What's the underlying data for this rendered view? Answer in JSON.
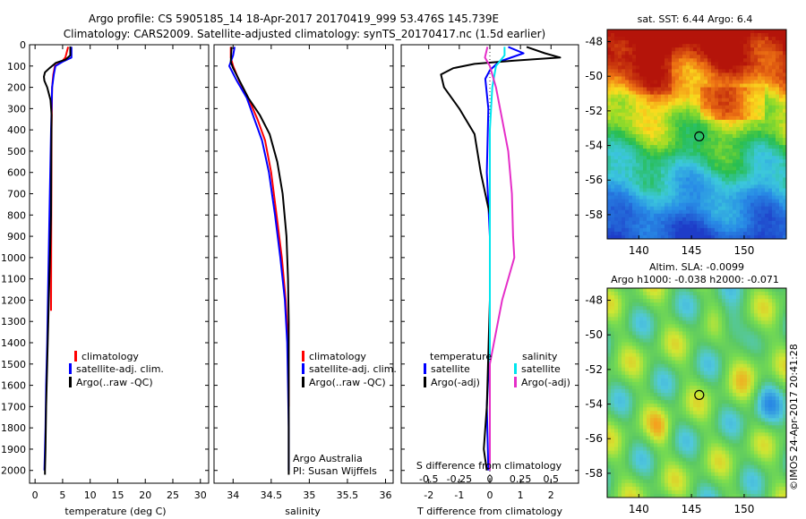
{
  "header": {
    "line1": "Argo profile: CS 5905185_14 18-Apr-2017 20170419_999 53.476S 145.739E",
    "line2": "Climatology: CARS2009. Satellite-adjusted climatology: synTS_20170417.nc (1.5d earlier)"
  },
  "colors": {
    "climatology": "#ff0000",
    "satellite": "#0000ff",
    "argo": "#000000",
    "satellite_salinity": "#00e5ee",
    "argo_salinity": "#e52ec8"
  },
  "depth_axis": {
    "ticks": [
      "0",
      "100",
      "200",
      "300",
      "400",
      "500",
      "600",
      "700",
      "800",
      "900",
      "1000",
      "1100",
      "1200",
      "1300",
      "1400",
      "1500",
      "1600",
      "1700",
      "1800",
      "1900",
      "2000"
    ],
    "range": [
      0,
      2060
    ]
  },
  "chart_data": [
    {
      "id": "temperature",
      "type": "line",
      "xlabel": "temperature (deg C)",
      "xlim": [
        -1,
        31.5
      ],
      "ylim": [
        2060,
        0
      ],
      "xticks": [
        "0",
        "5",
        "10",
        "15",
        "20",
        "25",
        "30"
      ],
      "xtick_values": [
        0,
        5,
        10,
        15,
        20,
        25,
        30
      ],
      "legend": [
        "climatology",
        "satellite-adj. clim.",
        "Argo(..raw -QC)"
      ],
      "series": [
        {
          "name": "climatology",
          "color": "#ff0000",
          "points": [
            [
              6.0,
              10
            ],
            [
              5.5,
              60
            ],
            [
              4.8,
              80
            ],
            [
              3.6,
              100
            ],
            [
              3.3,
              140
            ],
            [
              3.1,
              200
            ],
            [
              3.0,
              400
            ],
            [
              2.95,
              800
            ],
            [
              2.9,
              1250
            ]
          ]
        },
        {
          "name": "satellite-adj. clim.",
          "color": "#0000ff",
          "points": [
            [
              6.6,
              10
            ],
            [
              6.6,
              60
            ],
            [
              5.0,
              80
            ],
            [
              3.7,
              100
            ],
            [
              3.4,
              140
            ],
            [
              3.1,
              200
            ],
            [
              2.9,
              400
            ],
            [
              2.6,
              800
            ],
            [
              2.4,
              1100
            ],
            [
              2.2,
              1400
            ],
            [
              2.0,
              1600
            ],
            [
              1.9,
              1800
            ],
            [
              1.7,
              2000
            ]
          ]
        },
        {
          "name": "Argo(..raw -QC)",
          "color": "#000000",
          "points": [
            [
              6.4,
              8
            ],
            [
              6.4,
              50
            ],
            [
              5.5,
              70
            ],
            [
              3.8,
              85
            ],
            [
              2.6,
              110
            ],
            [
              1.8,
              130
            ],
            [
              1.6,
              150
            ],
            [
              1.7,
              170
            ],
            [
              2.2,
              200
            ],
            [
              2.8,
              260
            ],
            [
              3.0,
              330
            ],
            [
              2.95,
              500
            ],
            [
              2.9,
              800
            ],
            [
              2.7,
              1000
            ],
            [
              2.5,
              1200
            ],
            [
              2.2,
              1500
            ],
            [
              2.0,
              1700
            ],
            [
              1.9,
              1900
            ],
            [
              1.8,
              2000
            ],
            [
              1.8,
              2020
            ]
          ]
        }
      ]
    },
    {
      "id": "salinity",
      "type": "line",
      "xlabel": "salinity",
      "xlim": [
        33.75,
        36.1
      ],
      "ylim": [
        2060,
        0
      ],
      "xticks": [
        "34",
        "34.5",
        "35",
        "35.5",
        "36"
      ],
      "xtick_values": [
        34,
        34.5,
        35,
        35.5,
        36
      ],
      "legend": [
        "climatology",
        "satellite-adj. clim.",
        "Argo(..raw -QC)"
      ],
      "annotation": [
        "Argo Australia",
        "PI: Susan Wijffels"
      ],
      "series": [
        {
          "name": "climatology",
          "color": "#ff0000",
          "points": [
            [
              33.97,
              10
            ],
            [
              33.97,
              60
            ],
            [
              34.0,
              100
            ],
            [
              34.08,
              170
            ],
            [
              34.2,
              250
            ],
            [
              34.32,
              350
            ],
            [
              34.42,
              450
            ],
            [
              34.5,
              600
            ],
            [
              34.57,
              800
            ],
            [
              34.64,
              1000
            ],
            [
              34.69,
              1200
            ],
            [
              34.72,
              1400
            ],
            [
              34.73,
              1600
            ],
            [
              34.73,
              1700
            ]
          ]
        },
        {
          "name": "satellite-adj. clim.",
          "color": "#0000ff",
          "points": [
            [
              34.02,
              10
            ],
            [
              34.0,
              50
            ],
            [
              33.95,
              100
            ],
            [
              34.05,
              170
            ],
            [
              34.18,
              250
            ],
            [
              34.28,
              350
            ],
            [
              34.38,
              450
            ],
            [
              34.47,
              600
            ],
            [
              34.55,
              800
            ],
            [
              34.62,
              1000
            ],
            [
              34.68,
              1200
            ],
            [
              34.71,
              1400
            ],
            [
              34.72,
              1600
            ],
            [
              34.73,
              1800
            ],
            [
              34.73,
              2000
            ]
          ]
        },
        {
          "name": "Argo(..raw -QC)",
          "color": "#000000",
          "points": [
            [
              33.98,
              10
            ],
            [
              33.97,
              80
            ],
            [
              34.0,
              110
            ],
            [
              34.1,
              180
            ],
            [
              34.2,
              250
            ],
            [
              34.35,
              330
            ],
            [
              34.48,
              420
            ],
            [
              34.58,
              550
            ],
            [
              34.65,
              700
            ],
            [
              34.7,
              900
            ],
            [
              34.72,
              1100
            ],
            [
              34.73,
              1300
            ],
            [
              34.73,
              1600
            ],
            [
              34.73,
              1900
            ],
            [
              34.73,
              2020
            ]
          ]
        }
      ]
    },
    {
      "id": "differences",
      "type": "line",
      "xlabel": "T difference from climatology",
      "top_label": "S difference from climatology",
      "xlim": [
        -2.9,
        2.9
      ],
      "ylim": [
        2060,
        0
      ],
      "xticks": [
        "-2",
        "-1",
        "0",
        "1",
        "2"
      ],
      "xtick_values": [
        -2,
        -1,
        0,
        1,
        2
      ],
      "top_ticks": [
        "-0.5",
        "-0.25",
        "0",
        "0.25",
        "0.5"
      ],
      "top_tick_values": [
        -0.5,
        -0.25,
        0,
        0.25,
        0.5
      ],
      "legend_left_title": "temperature",
      "legend_right_title": "salinity",
      "legend_left": [
        "satellite",
        "Argo(-adj)"
      ],
      "legend_right": [
        "satellite",
        "Argo(-adj)"
      ],
      "series": [
        {
          "name": "satellite",
          "quantity": "temperature",
          "color": "#0000ff",
          "points": [
            [
              0.6,
              10
            ],
            [
              1.1,
              40
            ],
            [
              0.3,
              80
            ],
            [
              0.0,
              120
            ],
            [
              -0.15,
              160
            ],
            [
              -0.05,
              300
            ],
            [
              -0.1,
              600
            ],
            [
              0.0,
              900
            ],
            [
              0.0,
              1400
            ],
            [
              -0.1,
              1700
            ],
            [
              -0.05,
              2000
            ]
          ]
        },
        {
          "name": "Argo(-adj)",
          "quantity": "temperature",
          "color": "#000000",
          "points": [
            [
              1.2,
              10
            ],
            [
              1.8,
              40
            ],
            [
              2.3,
              60
            ],
            [
              0.8,
              75
            ],
            [
              -0.5,
              90
            ],
            [
              -1.2,
              110
            ],
            [
              -1.6,
              140
            ],
            [
              -1.5,
              200
            ],
            [
              -1.0,
              300
            ],
            [
              -0.5,
              420
            ],
            [
              -0.3,
              600
            ],
            [
              0.0,
              800
            ],
            [
              0.0,
              1200
            ],
            [
              -0.1,
              1700
            ],
            [
              -0.2,
              1900
            ],
            [
              -0.1,
              2000
            ]
          ]
        },
        {
          "name": "satellite",
          "quantity": "salinity",
          "color": "#00e5ee",
          "points": [
            [
              0.12,
              10
            ],
            [
              0.12,
              50
            ],
            [
              0.05,
              100
            ],
            [
              0.02,
              200
            ],
            [
              0.0,
              400
            ],
            [
              0.0,
              800
            ],
            [
              0.0,
              1200
            ],
            [
              0.0,
              1600
            ],
            [
              0.0,
              2000
            ]
          ]
        },
        {
          "name": "Argo(-adj)",
          "quantity": "salinity",
          "color": "#e52ec8",
          "points": [
            [
              -0.02,
              10
            ],
            [
              -0.04,
              60
            ],
            [
              0.0,
              100
            ],
            [
              0.05,
              200
            ],
            [
              0.1,
              350
            ],
            [
              0.15,
              500
            ],
            [
              0.18,
              700
            ],
            [
              0.19,
              900
            ],
            [
              0.2,
              1000
            ],
            [
              0.1,
              1200
            ],
            [
              0.0,
              1500
            ],
            [
              0.0,
              1800
            ],
            [
              0.0,
              2000
            ]
          ]
        }
      ]
    },
    {
      "id": "sst-map",
      "type": "heatmap",
      "title": "sat. SST: 6.44  Argo: 6.4",
      "xlim": [
        137,
        154
      ],
      "ylim": [
        -59.4,
        -47.3
      ],
      "xticks": [
        "140",
        "145",
        "150"
      ],
      "xtick_values": [
        140,
        145,
        150
      ],
      "yticks": [
        "-48",
        "-50",
        "-52",
        "-54",
        "-56",
        "-58"
      ],
      "ytick_values": [
        -48,
        -50,
        -52,
        -54,
        -56,
        -58
      ],
      "argo_position": [
        145.739,
        -53.476
      ]
    },
    {
      "id": "sla-map",
      "type": "heatmap",
      "title": "Altim. SLA: -0.0099",
      "subtitle": "Argo h1000: -0.038 h2000: -0.071",
      "xlim": [
        137,
        154
      ],
      "ylim": [
        -59.4,
        -47.3
      ],
      "xticks": [
        "140",
        "145",
        "150"
      ],
      "xtick_values": [
        140,
        145,
        150
      ],
      "yticks": [
        "-48",
        "-50",
        "-52",
        "-54",
        "-56",
        "-58"
      ],
      "ytick_values": [
        -48,
        -50,
        -52,
        -54,
        -56,
        -58
      ],
      "argo_position": [
        145.739,
        -53.476
      ]
    }
  ],
  "footer": {
    "credit": "©IMOS 24-Apr-2017 20:41:28"
  }
}
